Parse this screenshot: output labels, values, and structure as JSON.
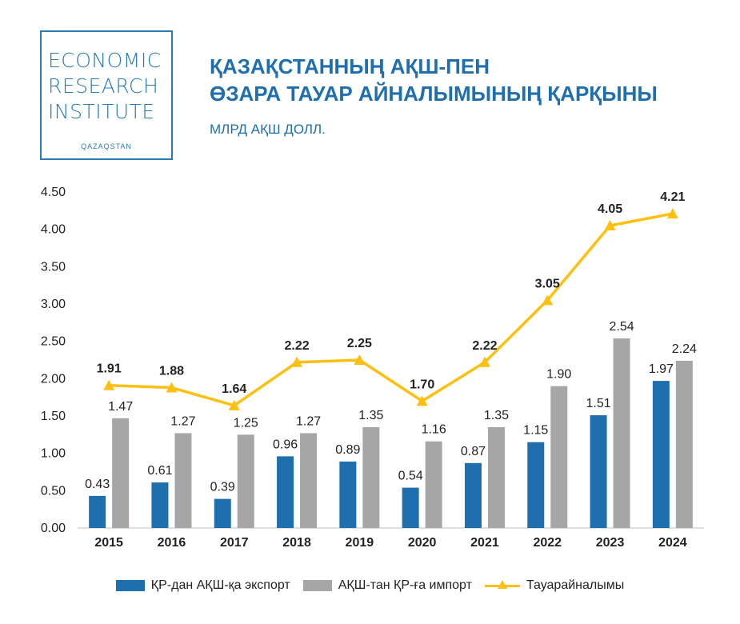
{
  "logo": {
    "line1": "ECONOMIC",
    "line2": "RESEARCH",
    "line3": "INSTITUTE",
    "subline": "QAZAQSTAN",
    "color": "#2a7ab5"
  },
  "header": {
    "title_line1": "ҚАЗАҚСТАННЫҢ АҚШ-ПЕН",
    "title_line2": "ӨЗАРА ТАУАР АЙНАЛЫМЫНЫҢ ҚАРҚЫНЫ",
    "unit": "МЛРД АҚШ ДОЛЛ."
  },
  "chart_data": {
    "type": "bar",
    "categories": [
      "2015",
      "2016",
      "2017",
      "2018",
      "2019",
      "2020",
      "2021",
      "2022",
      "2023",
      "2024"
    ],
    "series": [
      {
        "name": "ҚР-дан АҚШ-қа экспорт",
        "type": "bar",
        "color": "#1f6fae",
        "values": [
          0.43,
          0.61,
          0.39,
          0.96,
          0.89,
          0.54,
          0.87,
          1.15,
          1.51,
          1.97
        ],
        "labels": [
          "0.43",
          "0.61",
          "0.39",
          "0.96",
          "0.89",
          "0.54",
          "0.87",
          "1.15",
          "1.51",
          "1.97"
        ]
      },
      {
        "name": "АҚШ-тан ҚР-ға импорт",
        "type": "bar",
        "color": "#a6a6a6",
        "values": [
          1.47,
          1.27,
          1.25,
          1.27,
          1.35,
          1.16,
          1.35,
          1.9,
          2.54,
          2.24
        ],
        "labels": [
          "1.47",
          "1.27",
          "1.25",
          "1.27",
          "1.35",
          "1.16",
          "1.35",
          "1.90",
          "2.54",
          "2.24"
        ]
      },
      {
        "name": "Тауарайналымы",
        "type": "line",
        "marker": "triangle",
        "color": "#fdc010",
        "values": [
          1.91,
          1.88,
          1.64,
          2.22,
          2.25,
          1.7,
          2.22,
          3.05,
          4.05,
          4.21
        ],
        "labels": [
          "1.91",
          "1.88",
          "1.64",
          "2.22",
          "2.25",
          "1.70",
          "2.22",
          "3.05",
          "4.05",
          "4.21"
        ]
      }
    ],
    "yticks": [
      "0.00",
      "0.50",
      "1.00",
      "1.50",
      "2.00",
      "2.50",
      "3.00",
      "3.50",
      "4.00",
      "4.50"
    ],
    "ylim": [
      0,
      4.5
    ],
    "grid": false,
    "legend_position": "bottom"
  }
}
